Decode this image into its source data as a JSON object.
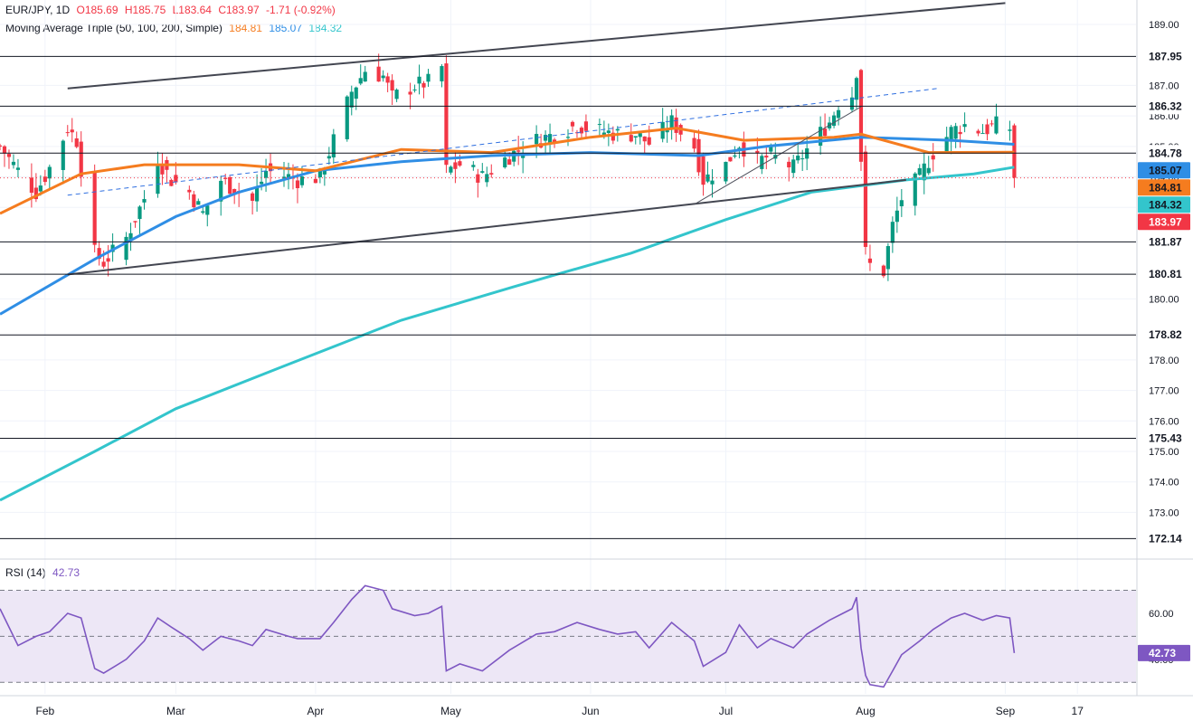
{
  "header": {
    "symbol": "EUR/JPY, 1D",
    "open": "O185.69",
    "high": "H185.75",
    "low": "L183.64",
    "close": "C183.97",
    "change": "-1.71 (-0.92%)",
    "ma_label": "Moving Average Triple (50, 100, 200, Simple)",
    "ma50_value": "184.81",
    "ma100_value": "185.07",
    "ma200_value": "184.32"
  },
  "rsi_header": {
    "label": "RSI (14)",
    "value": "42.73"
  },
  "colors": {
    "up": "#089981",
    "down": "#f23645",
    "ma50": "#f57c1f",
    "ma100": "#2f8ee5",
    "ma200": "#33c5cc",
    "rsi": "#7e57c2",
    "rsi_band": "#ede7f6",
    "hline": "#131722"
  },
  "chart_data": [
    {
      "type": "candlestick",
      "title": "EUR/JPY, 1D",
      "y_axis": {
        "ticks": [
          189.0,
          187.0,
          186.0,
          185.0,
          184.0,
          183.0,
          180.0,
          178.0,
          177.0,
          176.0,
          175.0,
          174.0,
          173.0
        ],
        "tick_labels": [
          "189.00",
          "187.00",
          "186.00",
          "185.00",
          "184.00",
          "183.00",
          "180.00",
          "178.00",
          "177.00",
          "176.00",
          "175.00",
          "174.00",
          "173.00"
        ],
        "range": [
          171.5,
          189.8
        ]
      },
      "x_axis": {
        "labels": [
          "Feb",
          "Mar",
          "Apr",
          "May",
          "Jun",
          "Jul",
          "Aug",
          "Sep",
          "17"
        ],
        "label_dates": [
          "2024-02-01",
          "2024-03-01",
          "2024-04-01",
          "2024-05-01",
          "2024-06-01",
          "2024-07-01",
          "2024-08-01",
          "2024-09-01",
          "2024-09-17"
        ],
        "start": "2024-01-22",
        "end": "2024-09-30"
      },
      "horizontal_levels": [
        187.95,
        186.32,
        184.78,
        181.87,
        180.81,
        178.82,
        175.43,
        172.14
      ],
      "level_labels": [
        "187.95",
        "186.32",
        "184.78",
        "181.87",
        "180.81",
        "178.82",
        "175.43",
        "172.14"
      ],
      "last_price": 183.97,
      "last_price_label": "183.97",
      "ma_labels": [
        {
          "name": "MA 100",
          "value": "185.07"
        },
        {
          "name": "MA 50",
          "value": "184.81"
        },
        {
          "name": "MA 200",
          "value": "184.32"
        }
      ],
      "close_anchors": [
        [
          "2024-01-22",
          185.0
        ],
        [
          "2024-01-26",
          184.2
        ],
        [
          "2024-01-30",
          183.5
        ],
        [
          "2024-02-02",
          184.3
        ],
        [
          "2024-02-06",
          185.6
        ],
        [
          "2024-02-08",
          185.2
        ],
        [
          "2024-02-12",
          181.5
        ],
        [
          "2024-02-14",
          181.2
        ],
        [
          "2024-02-19",
          182.0
        ],
        [
          "2024-02-23",
          183.3
        ],
        [
          "2024-02-26",
          184.6
        ],
        [
          "2024-02-29",
          183.9
        ],
        [
          "2024-03-04",
          183.5
        ],
        [
          "2024-03-07",
          182.8
        ],
        [
          "2024-03-11",
          183.9
        ],
        [
          "2024-03-15",
          183.5
        ],
        [
          "2024-03-18",
          183.2
        ],
        [
          "2024-03-21",
          184.2
        ],
        [
          "2024-03-26",
          184.0
        ],
        [
          "2024-03-28",
          183.9
        ],
        [
          "2024-04-02",
          184.0
        ],
        [
          "2024-04-05",
          185.2
        ],
        [
          "2024-04-09",
          186.8
        ],
        [
          "2024-04-12",
          187.5
        ],
        [
          "2024-04-16",
          187.3
        ],
        [
          "2024-04-18",
          186.6
        ],
        [
          "2024-04-23",
          187.0
        ],
        [
          "2024-04-26",
          187.1
        ],
        [
          "2024-04-29",
          187.6
        ],
        [
          "2024-04-30",
          184.2
        ],
        [
          "2024-05-03",
          184.4
        ],
        [
          "2024-05-08",
          184.0
        ],
        [
          "2024-05-14",
          184.7
        ],
        [
          "2024-05-20",
          185.2
        ],
        [
          "2024-05-24",
          185.4
        ],
        [
          "2024-05-29",
          185.7
        ],
        [
          "2024-06-03",
          185.5
        ],
        [
          "2024-06-07",
          185.4
        ],
        [
          "2024-06-11",
          185.4
        ],
        [
          "2024-06-14",
          185.1
        ],
        [
          "2024-06-19",
          185.8
        ],
        [
          "2024-06-24",
          185.0
        ],
        [
          "2024-06-26",
          183.9
        ],
        [
          "2024-07-01",
          184.4
        ],
        [
          "2024-07-04",
          185.1
        ],
        [
          "2024-07-08",
          184.5
        ],
        [
          "2024-07-11",
          184.7
        ],
        [
          "2024-07-16",
          184.3
        ],
        [
          "2024-07-19",
          184.9
        ],
        [
          "2024-07-24",
          185.8
        ],
        [
          "2024-07-26",
          186.4
        ],
        [
          "2024-07-29",
          186.7
        ],
        [
          "2024-07-30",
          187.5
        ],
        [
          "2024-07-31",
          184.6
        ],
        [
          "2024-08-01",
          181.5
        ],
        [
          "2024-08-02",
          181.1
        ],
        [
          "2024-08-05",
          180.9
        ],
        [
          "2024-08-07",
          182.4
        ],
        [
          "2024-08-09",
          183.3
        ],
        [
          "2024-08-13",
          184.0
        ],
        [
          "2024-08-16",
          184.8
        ],
        [
          "2024-08-20",
          185.5
        ],
        [
          "2024-08-23",
          185.7
        ],
        [
          "2024-08-27",
          185.5
        ],
        [
          "2024-08-30",
          185.7
        ],
        [
          "2024-09-02",
          185.6
        ],
        [
          "2024-09-03",
          183.97
        ]
      ],
      "last_candle": {
        "date": "2024-09-03",
        "open": 185.69,
        "high": 185.75,
        "low": 183.64,
        "close": 183.97
      },
      "moving_averages": {
        "ma50": [
          [
            "2024-01-22",
            182.8
          ],
          [
            "2024-02-09",
            184.1
          ],
          [
            "2024-02-23",
            184.4
          ],
          [
            "2024-03-15",
            184.4
          ],
          [
            "2024-04-01",
            184.2
          ],
          [
            "2024-04-20",
            184.9
          ],
          [
            "2024-05-10",
            184.8
          ],
          [
            "2024-06-01",
            185.3
          ],
          [
            "2024-06-20",
            185.6
          ],
          [
            "2024-07-05",
            185.2
          ],
          [
            "2024-07-25",
            185.3
          ],
          [
            "2024-07-31",
            185.4
          ],
          [
            "2024-08-15",
            184.8
          ],
          [
            "2024-09-03",
            184.81
          ]
        ],
        "ma100": [
          [
            "2024-01-22",
            179.5
          ],
          [
            "2024-02-12",
            181.3
          ],
          [
            "2024-03-01",
            182.7
          ],
          [
            "2024-03-15",
            183.5
          ],
          [
            "2024-04-01",
            184.2
          ],
          [
            "2024-04-20",
            184.5
          ],
          [
            "2024-05-10",
            184.7
          ],
          [
            "2024-06-01",
            184.8
          ],
          [
            "2024-06-25",
            184.7
          ],
          [
            "2024-07-10",
            185.0
          ],
          [
            "2024-07-31",
            185.3
          ],
          [
            "2024-08-20",
            185.2
          ],
          [
            "2024-09-03",
            185.07
          ]
        ],
        "ma200": [
          [
            "2024-01-22",
            173.4
          ],
          [
            "2024-02-12",
            175.0
          ],
          [
            "2024-03-01",
            176.4
          ],
          [
            "2024-03-25",
            177.8
          ],
          [
            "2024-04-20",
            179.3
          ],
          [
            "2024-05-15",
            180.4
          ],
          [
            "2024-06-10",
            181.5
          ],
          [
            "2024-07-01",
            182.6
          ],
          [
            "2024-07-20",
            183.5
          ],
          [
            "2024-08-10",
            183.9
          ],
          [
            "2024-08-25",
            184.1
          ],
          [
            "2024-09-03",
            184.32
          ]
        ]
      },
      "trendlines": [
        {
          "from": [
            "2024-02-06",
            186.9
          ],
          "to": [
            "2024-09-01",
            189.7
          ],
          "style": "solid"
        },
        {
          "from": [
            "2024-02-06",
            180.8
          ],
          "to": [
            "2024-08-10",
            183.9
          ],
          "style": "solid"
        },
        {
          "from": [
            "2024-02-06",
            183.4
          ],
          "to": [
            "2024-08-17",
            186.9
          ],
          "style": "dashed"
        },
        {
          "from": [
            "2024-06-24",
            183.1
          ],
          "to": [
            "2024-07-31",
            186.3
          ],
          "style": "thin"
        }
      ]
    },
    {
      "type": "line",
      "title": "RSI (14)",
      "y_axis": {
        "ticks": [
          60.0,
          40.0
        ],
        "tick_labels": [
          "60.00",
          "40.00"
        ],
        "range": [
          25,
          82
        ]
      },
      "bands": [
        70,
        50,
        30
      ],
      "last_value": 42.73,
      "last_value_label": "42.73",
      "series": [
        {
          "name": "RSI (14)",
          "points": [
            [
              "2024-01-22",
              62
            ],
            [
              "2024-01-26",
              46
            ],
            [
              "2024-01-30",
              50
            ],
            [
              "2024-02-02",
              52
            ],
            [
              "2024-02-06",
              60
            ],
            [
              "2024-02-09",
              58
            ],
            [
              "2024-02-12",
              36
            ],
            [
              "2024-02-14",
              34
            ],
            [
              "2024-02-19",
              40
            ],
            [
              "2024-02-23",
              48
            ],
            [
              "2024-02-26",
              58
            ],
            [
              "2024-02-29",
              54
            ],
            [
              "2024-03-04",
              49
            ],
            [
              "2024-03-07",
              44
            ],
            [
              "2024-03-11",
              50
            ],
            [
              "2024-03-15",
              48
            ],
            [
              "2024-03-18",
              46
            ],
            [
              "2024-03-21",
              53
            ],
            [
              "2024-03-26",
              50
            ],
            [
              "2024-03-28",
              49
            ],
            [
              "2024-04-02",
              49
            ],
            [
              "2024-04-05",
              56
            ],
            [
              "2024-04-09",
              66
            ],
            [
              "2024-04-12",
              72
            ],
            [
              "2024-04-16",
              70
            ],
            [
              "2024-04-18",
              62
            ],
            [
              "2024-04-23",
              59
            ],
            [
              "2024-04-26",
              60
            ],
            [
              "2024-04-29",
              63
            ],
            [
              "2024-04-30",
              35
            ],
            [
              "2024-05-03",
              38
            ],
            [
              "2024-05-08",
              35
            ],
            [
              "2024-05-14",
              44
            ],
            [
              "2024-05-20",
              51
            ],
            [
              "2024-05-24",
              52
            ],
            [
              "2024-05-29",
              56
            ],
            [
              "2024-06-03",
              53
            ],
            [
              "2024-06-07",
              51
            ],
            [
              "2024-06-11",
              52
            ],
            [
              "2024-06-14",
              45
            ],
            [
              "2024-06-19",
              56
            ],
            [
              "2024-06-24",
              48
            ],
            [
              "2024-06-26",
              37
            ],
            [
              "2024-07-01",
              43
            ],
            [
              "2024-07-04",
              55
            ],
            [
              "2024-07-08",
              45
            ],
            [
              "2024-07-11",
              49
            ],
            [
              "2024-07-16",
              45
            ],
            [
              "2024-07-19",
              51
            ],
            [
              "2024-07-24",
              57
            ],
            [
              "2024-07-26",
              59
            ],
            [
              "2024-07-29",
              62
            ],
            [
              "2024-07-30",
              67
            ],
            [
              "2024-07-31",
              45
            ],
            [
              "2024-08-01",
              33
            ],
            [
              "2024-08-02",
              29
            ],
            [
              "2024-08-05",
              28
            ],
            [
              "2024-08-07",
              35
            ],
            [
              "2024-08-09",
              42
            ],
            [
              "2024-08-13",
              48
            ],
            [
              "2024-08-16",
              53
            ],
            [
              "2024-08-20",
              58
            ],
            [
              "2024-08-23",
              60
            ],
            [
              "2024-08-27",
              57
            ],
            [
              "2024-08-30",
              59
            ],
            [
              "2024-09-02",
              58
            ],
            [
              "2024-09-03",
              42.73
            ]
          ]
        }
      ]
    }
  ]
}
